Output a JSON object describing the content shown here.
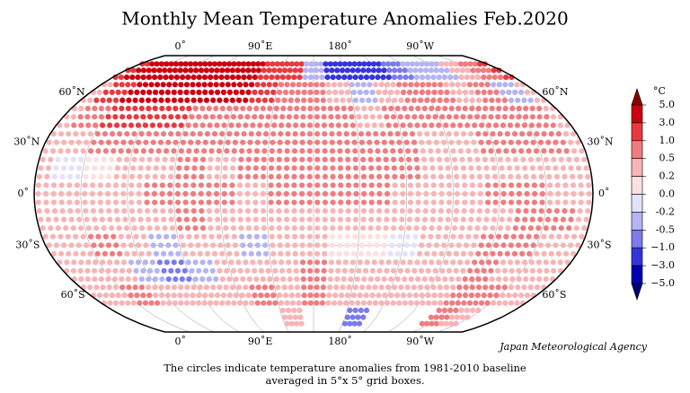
{
  "title": "Monthly Mean Temperature Anomalies Feb.2020",
  "lon_labels": [
    {
      "value": 0,
      "label": "0˚"
    },
    {
      "value": 90,
      "label": "90˚E"
    },
    {
      "value": 180,
      "label": "180˚"
    },
    {
      "value": -90,
      "label": "90˚W"
    }
  ],
  "lat_labels": [
    {
      "value": 60,
      "label": "60˚N"
    },
    {
      "value": 30,
      "label": "30˚N"
    },
    {
      "value": 0,
      "label": "0˚"
    },
    {
      "value": -30,
      "label": "30˚S"
    },
    {
      "value": -60,
      "label": "60˚S"
    }
  ],
  "legend": {
    "unit": "°C",
    "ticks": [
      {
        "value": 5,
        "label": "5.0"
      },
      {
        "value": 3,
        "label": "3.0"
      },
      {
        "value": 1,
        "label": "1.0"
      },
      0.5,
      0.2,
      {
        "value": 0,
        "label": "0.0"
      },
      -0.2,
      -0.5,
      {
        "value": -1,
        "label": "−1.0"
      },
      {
        "value": -3,
        "label": "−3.0"
      },
      {
        "value": -5,
        "label": "−5.0"
      }
    ],
    "colors": [
      "#8a0000",
      "#cc0010",
      "#e8393f",
      "#f07c80",
      "#f8b4b6",
      "#fde0e0",
      "#e2e2fb",
      "#b4b4f4",
      "#7b7bec",
      "#3434dc",
      "#0000b0",
      "#000070"
    ]
  },
  "agency": "Japan Meteorological Agency",
  "caption": [
    "The circles indicate temperature anomalies from 1981-2010 baseline",
    "averaged in 5°x 5° grid boxes."
  ],
  "anomaly_grid": {
    "lats": [
      75,
      60,
      45,
      30,
      15,
      0,
      -15,
      -30,
      -45,
      -60,
      -75
    ],
    "lons": [
      -170,
      -150,
      -130,
      -110,
      -90,
      -70,
      -50,
      -30,
      -10,
      10,
      30,
      50,
      70,
      90,
      110,
      130,
      150,
      170
    ],
    "values": [
      [
        -1.5,
        -1.5,
        -0.7,
        -0.3,
        -0.3,
        0.4,
        0.6,
        1.2,
        3.5,
        4,
        4,
        3.5,
        3.5,
        4,
        2.5,
        1,
        -0.5,
        -1.2
      ],
      [
        -0.5,
        0.3,
        0.6,
        0.8,
        0.4,
        0.6,
        -0.3,
        0.3,
        1.5,
        4,
        4,
        3.5,
        3.2,
        3,
        1.2,
        0.8,
        0.5,
        0.2
      ],
      [
        0.4,
        0.5,
        0.6,
        0.5,
        0.8,
        0.8,
        0.6,
        0.4,
        0.7,
        1.5,
        1.5,
        1.2,
        0.8,
        0.6,
        0.7,
        0.8,
        0.6,
        0.5
      ],
      [
        0.6,
        0.5,
        0.4,
        0.3,
        0.6,
        0.8,
        0.5,
        0.3,
        0.4,
        0.7,
        0.9,
        0.8,
        0.6,
        0.7,
        0.8,
        0.7,
        0.6,
        0.6
      ],
      [
        0.6,
        0.5,
        0.4,
        0.3,
        0.4,
        0.4,
        0.3,
        0.3,
        -0.1,
        0.1,
        0.4,
        0.4,
        0.5,
        0.4,
        0.5,
        0.6,
        0.6,
        0.6
      ],
      [
        0.5,
        0.4,
        0.3,
        0.4,
        0.5,
        0.6,
        0.4,
        0.4,
        0.3,
        0.4,
        0.4,
        0.6,
        0.6,
        0.5,
        0.4,
        0.6,
        0.6,
        0.6
      ],
      [
        0.4,
        0.3,
        0.3,
        0.3,
        0.4,
        0.5,
        0.6,
        0.4,
        0.3,
        0.4,
        0.3,
        0.4,
        0.5,
        0.4,
        0.3,
        0.4,
        0.4,
        0.4
      ],
      [
        0.1,
        -0.2,
        0.3,
        0.4,
        0.6,
        0.5,
        0.3,
        0.2,
        0.3,
        0.6,
        0.4,
        -0.3,
        0.3,
        0.4,
        -0.3,
        0.4,
        0.3,
        0.1
      ],
      [
        0.4,
        0.3,
        0.2,
        0.3,
        0.5,
        0.4,
        0.4,
        0.3,
        0.3,
        0.2,
        -0.3,
        -0.6,
        -0.5,
        0.2,
        0.3,
        0.4,
        0.6,
        0.3
      ],
      [
        0.3,
        0.4,
        0.4,
        0.3,
        0.6,
        0.5,
        0.4,
        0.3,
        0.4,
        0.5,
        0.4,
        0.3,
        0.3,
        0.4,
        0.5,
        0.4,
        0.5,
        0.3
      ],
      [
        -0.8,
        null,
        null,
        null,
        0.5,
        0.3,
        null,
        null,
        null,
        null,
        null,
        null,
        null,
        null,
        null,
        0.2,
        null,
        null
      ]
    ]
  }
}
